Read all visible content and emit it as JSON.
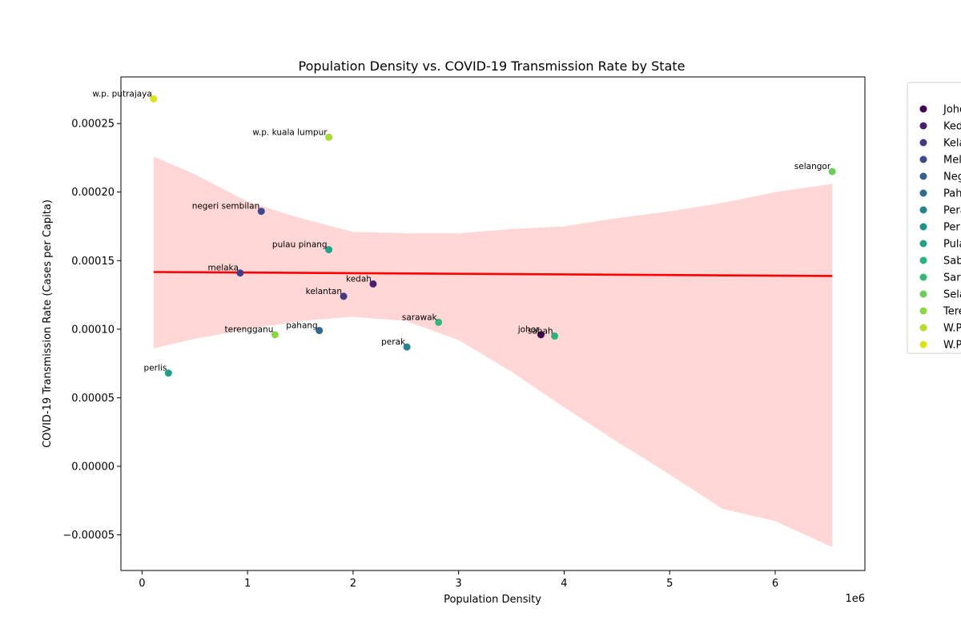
{
  "chart_data": {
    "type": "scatter",
    "title": "Population Density vs. COVID-19 Transmission Rate by State",
    "xlabel": "Population Density",
    "ylabel": "COVID-19 Transmission Rate (Cases per Capita)",
    "x_offset_label": "1e6",
    "xlim": [
      -200000,
      6850000
    ],
    "ylim": [
      -7.6e-05,
      0.000284
    ],
    "x_ticks": [
      0,
      1000000,
      2000000,
      3000000,
      4000000,
      5000000,
      6000000
    ],
    "x_tick_labels": [
      "0",
      "1",
      "2",
      "3",
      "4",
      "5",
      "6"
    ],
    "y_ticks": [
      -5e-05,
      0.0,
      5e-05,
      0.0001,
      0.00015,
      0.0002,
      0.00025
    ],
    "y_tick_labels": [
      "−0.00005",
      "0.00000",
      "0.00005",
      "0.00010",
      "0.00015",
      "0.00020",
      "0.00025"
    ],
    "grid": false,
    "legend_position": "outside-right",
    "regression": {
      "color": "#ff0000",
      "line": [
        [
          110000,
          0.0001417
        ],
        [
          6540000,
          0.0001388
        ]
      ],
      "ci_color": "#ffb0b0",
      "ci_upper": [
        [
          110000,
          0.000226
        ],
        [
          500000,
          0.000213
        ],
        [
          1000000,
          0.000193
        ],
        [
          1500000,
          0.000181
        ],
        [
          2000000,
          0.000171
        ],
        [
          2500000,
          0.00017
        ],
        [
          3000000,
          0.00017
        ],
        [
          3500000,
          0.000173
        ],
        [
          4000000,
          0.000175
        ],
        [
          4500000,
          0.000181
        ],
        [
          5000000,
          0.000186
        ],
        [
          5500000,
          0.000192
        ],
        [
          6000000,
          0.0002
        ],
        [
          6540000,
          0.000206
        ]
      ],
      "ci_lower": [
        [
          110000,
          8.6e-05
        ],
        [
          500000,
          9.3e-05
        ],
        [
          1000000,
          0.0001
        ],
        [
          1500000,
          0.000106
        ],
        [
          2000000,
          0.000109
        ],
        [
          2500000,
          0.000106
        ],
        [
          3000000,
          9.2e-05
        ],
        [
          3500000,
          6.9e-05
        ],
        [
          4000000,
          4.3e-05
        ],
        [
          4500000,
          1.8e-05
        ],
        [
          5000000,
          -6e-06
        ],
        [
          5500000,
          -3.1e-05
        ],
        [
          6000000,
          -4e-05
        ],
        [
          6540000,
          -5.9e-05
        ]
      ]
    },
    "points": [
      {
        "label": "w.p. putrajaya",
        "x": 110000,
        "y": 0.000268,
        "color": "#dde318"
      },
      {
        "label": "w.p. kuala lumpur",
        "x": 1770000,
        "y": 0.00024,
        "color": "#a8db34"
      },
      {
        "label": "selangor",
        "x": 6540000,
        "y": 0.000215,
        "color": "#6ccd5a"
      },
      {
        "label": "negeri sembilan",
        "x": 1130000,
        "y": 0.000186,
        "color": "#3e4989"
      },
      {
        "label": "pulau pinang",
        "x": 1770000,
        "y": 0.000158,
        "color": "#20a386"
      },
      {
        "label": "melaka",
        "x": 930000,
        "y": 0.000141,
        "color": "#433e85"
      },
      {
        "label": "kedah",
        "x": 2190000,
        "y": 0.000133,
        "color": "#481f70"
      },
      {
        "label": "kelantan",
        "x": 1910000,
        "y": 0.000124,
        "color": "#443983"
      },
      {
        "label": "sarawak",
        "x": 2810000,
        "y": 0.000105,
        "color": "#35b779"
      },
      {
        "label": "pahang",
        "x": 1680000,
        "y": 9.9e-05,
        "color": "#31688e"
      },
      {
        "label": "terengganu",
        "x": 1260000,
        "y": 9.6e-05,
        "color": "#8bd646"
      },
      {
        "label": "johor",
        "x": 3780000,
        "y": 9.6e-05,
        "color": "#440154"
      },
      {
        "label": "sabah",
        "x": 3910000,
        "y": 9.5e-05,
        "color": "#2db27d"
      },
      {
        "label": "perak",
        "x": 2510000,
        "y": 8.7e-05,
        "color": "#26828e"
      },
      {
        "label": "perlis",
        "x": 250000,
        "y": 6.8e-05,
        "color": "#1f9e89"
      }
    ],
    "legend": [
      {
        "label": "Johor",
        "color": "#440154"
      },
      {
        "label": "Kedah",
        "color": "#481f70"
      },
      {
        "label": "Kelantan",
        "color": "#443983"
      },
      {
        "label": "Melaka",
        "color": "#3e4989"
      },
      {
        "label": "Negeri Sembilan",
        "color": "#355f8d"
      },
      {
        "label": "Pahang",
        "color": "#2f6c8e"
      },
      {
        "label": "Perak",
        "color": "#26828e"
      },
      {
        "label": "Perlis",
        "color": "#21918c"
      },
      {
        "label": "Pulau Pinang",
        "color": "#1fa187"
      },
      {
        "label": "Sabah",
        "color": "#2db27d"
      },
      {
        "label": "Sarawak",
        "color": "#35b779"
      },
      {
        "label": "Selangor",
        "color": "#6ccd5a"
      },
      {
        "label": "Terengganu",
        "color": "#8bd646"
      },
      {
        "label": "W.P. Kuala Lumpur",
        "color": "#b5de2b"
      },
      {
        "label": "W.P. Putrajaya",
        "color": "#dde318"
      }
    ]
  }
}
